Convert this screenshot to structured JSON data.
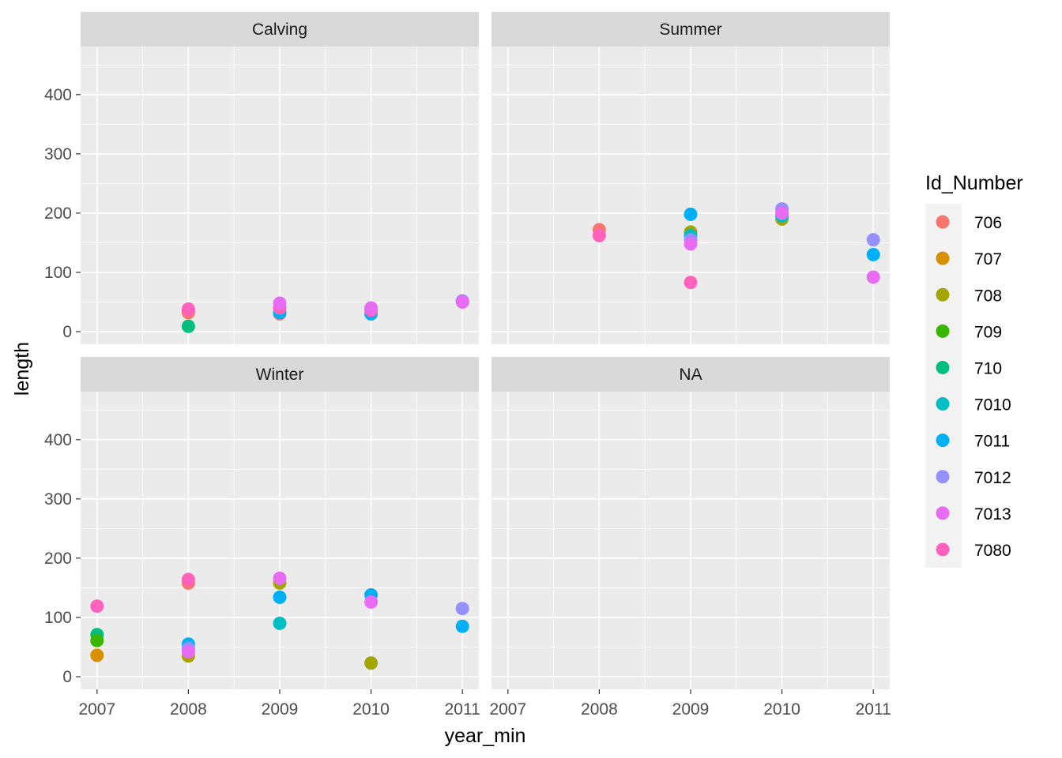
{
  "chart_data": {
    "type": "scatter",
    "facet_variable": "season",
    "xlabel": "year_min",
    "ylabel": "length",
    "x_ticks": [
      2007,
      2008,
      2009,
      2010,
      2011
    ],
    "y_ticks": [
      0,
      100,
      200,
      300,
      400
    ],
    "xlim": [
      2007,
      2011
    ],
    "ylim": [
      0,
      480
    ],
    "grid": true,
    "legend": {
      "title": "Id_Number",
      "placement": "right",
      "entries": [
        {
          "label": "706",
          "color": "#F8766D"
        },
        {
          "label": "707",
          "color": "#D89000"
        },
        {
          "label": "708",
          "color": "#A3A500"
        },
        {
          "label": "709",
          "color": "#39B600"
        },
        {
          "label": "710",
          "color": "#00BF7D"
        },
        {
          "label": "7010",
          "color": "#00BFC4"
        },
        {
          "label": "7011",
          "color": "#00B0F6"
        },
        {
          "label": "7012",
          "color": "#9590FF"
        },
        {
          "label": "7013",
          "color": "#E76BF3"
        },
        {
          "label": "7080",
          "color": "#FF62BC"
        }
      ]
    },
    "panels": [
      {
        "label": "Calving",
        "points": [
          {
            "id": "706",
            "x": 2008,
            "y": 32
          },
          {
            "id": "7080",
            "x": 2008,
            "y": 38
          },
          {
            "id": "710",
            "x": 2008,
            "y": 9
          },
          {
            "id": "706",
            "x": 2009,
            "y": 30
          },
          {
            "id": "7011",
            "x": 2009,
            "y": 32
          },
          {
            "id": "7080",
            "x": 2009,
            "y": 40
          },
          {
            "id": "7013",
            "x": 2009,
            "y": 48
          },
          {
            "id": "7011",
            "x": 2010,
            "y": 30
          },
          {
            "id": "7080",
            "x": 2010,
            "y": 36
          },
          {
            "id": "7013",
            "x": 2010,
            "y": 40
          },
          {
            "id": "7012",
            "x": 2011,
            "y": 52
          },
          {
            "id": "7013",
            "x": 2011,
            "y": 50
          }
        ]
      },
      {
        "label": "Summer",
        "points": [
          {
            "id": "706",
            "x": 2008,
            "y": 172
          },
          {
            "id": "7080",
            "x": 2008,
            "y": 162
          },
          {
            "id": "7011",
            "x": 2009,
            "y": 198
          },
          {
            "id": "708",
            "x": 2009,
            "y": 168
          },
          {
            "id": "7010",
            "x": 2009,
            "y": 162
          },
          {
            "id": "7012",
            "x": 2009,
            "y": 155
          },
          {
            "id": "7013",
            "x": 2009,
            "y": 148
          },
          {
            "id": "7080",
            "x": 2009,
            "y": 83
          },
          {
            "id": "708",
            "x": 2010,
            "y": 190
          },
          {
            "id": "7010",
            "x": 2010,
            "y": 195
          },
          {
            "id": "7012",
            "x": 2010,
            "y": 207
          },
          {
            "id": "7013",
            "x": 2010,
            "y": 200
          },
          {
            "id": "7012",
            "x": 2011,
            "y": 155
          },
          {
            "id": "7011",
            "x": 2011,
            "y": 130
          },
          {
            "id": "7013",
            "x": 2011,
            "y": 92
          }
        ]
      },
      {
        "label": "Winter",
        "points": [
          {
            "id": "7080",
            "x": 2007,
            "y": 119
          },
          {
            "id": "710",
            "x": 2007,
            "y": 71
          },
          {
            "id": "709",
            "x": 2007,
            "y": 61
          },
          {
            "id": "707",
            "x": 2007,
            "y": 36
          },
          {
            "id": "706",
            "x": 2008,
            "y": 158
          },
          {
            "id": "7080",
            "x": 2008,
            "y": 164
          },
          {
            "id": "7011",
            "x": 2008,
            "y": 55
          },
          {
            "id": "7012",
            "x": 2008,
            "y": 48
          },
          {
            "id": "708",
            "x": 2008,
            "y": 35
          },
          {
            "id": "7013",
            "x": 2008,
            "y": 42
          },
          {
            "id": "708",
            "x": 2009,
            "y": 158
          },
          {
            "id": "7013",
            "x": 2009,
            "y": 166
          },
          {
            "id": "7011",
            "x": 2009,
            "y": 134
          },
          {
            "id": "7010",
            "x": 2009,
            "y": 90
          },
          {
            "id": "7011",
            "x": 2010,
            "y": 138
          },
          {
            "id": "7013",
            "x": 2010,
            "y": 126
          },
          {
            "id": "708",
            "x": 2010,
            "y": 23
          },
          {
            "id": "7012",
            "x": 2011,
            "y": 115
          },
          {
            "id": "7011",
            "x": 2011,
            "y": 85
          }
        ]
      },
      {
        "label": "NA",
        "points": []
      }
    ]
  }
}
